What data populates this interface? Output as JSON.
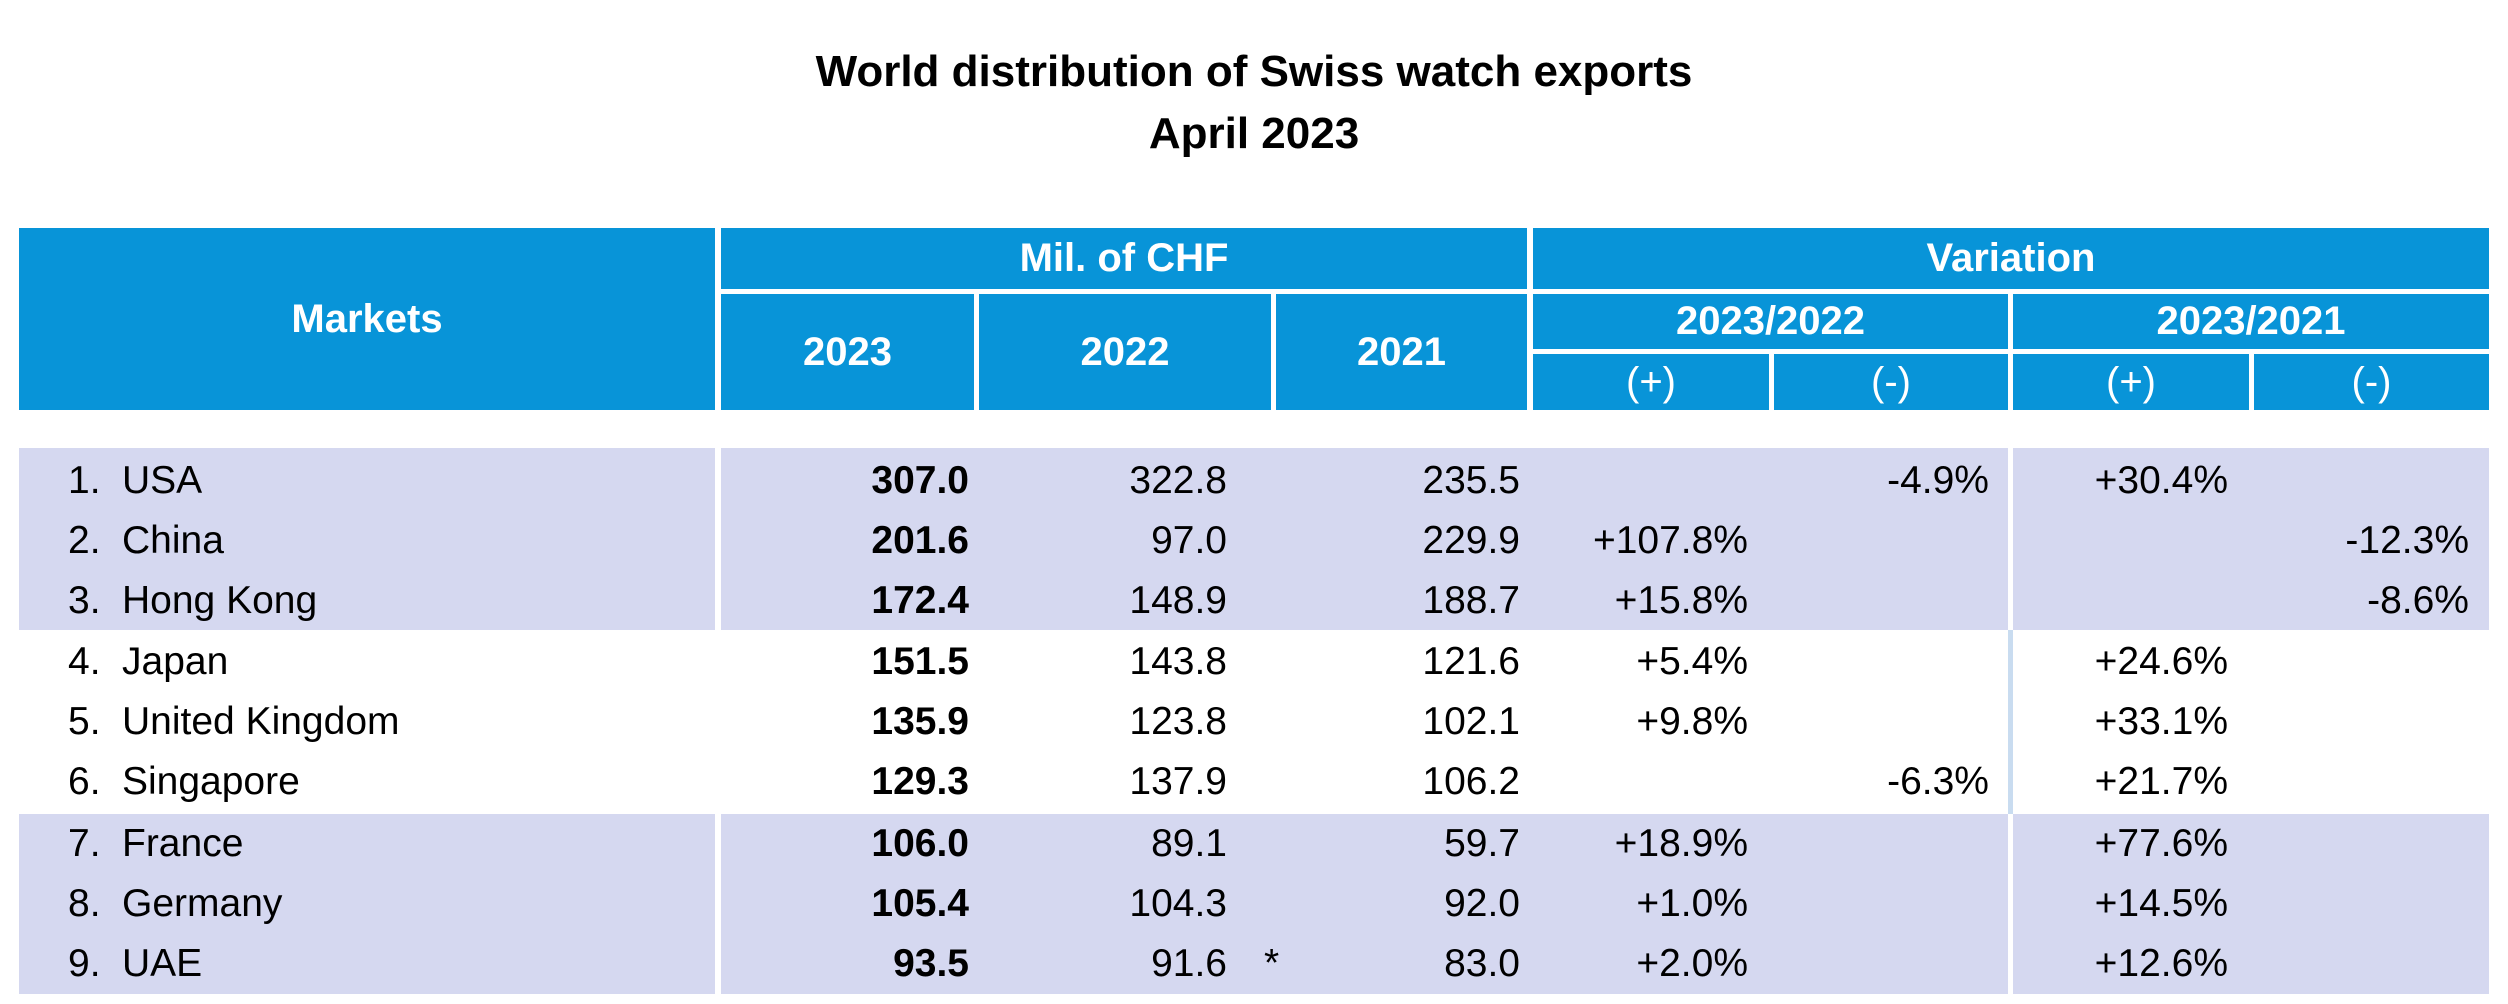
{
  "title": {
    "line1": "World distribution of Swiss watch exports",
    "line2": "April 2023"
  },
  "header": {
    "markets": "Markets",
    "mil_chf": "Mil. of CHF",
    "variation": "Variation",
    "y2023": "2023",
    "y2022": "2022",
    "y2021": "2021",
    "var1": "2023/2022",
    "var2": "2023/2021",
    "plus": "(+)",
    "minus": "(-)"
  },
  "rows": [
    {
      "rank": "1.",
      "market": "USA",
      "v2023": "307.0",
      "v2022": "322.8",
      "v2021": "235.5",
      "var22_plus": "",
      "var22_minus": "-4.9%",
      "var21_plus": "+30.4%",
      "var21_minus": ""
    },
    {
      "rank": "2.",
      "market": "China",
      "v2023": "201.6",
      "v2022": "97.0",
      "v2021": "229.9",
      "var22_plus": "+107.8%",
      "var22_minus": "",
      "var21_plus": "",
      "var21_minus": "-12.3%"
    },
    {
      "rank": "3.",
      "market": "Hong Kong",
      "v2023": "172.4",
      "v2022": "148.9",
      "v2021": "188.7",
      "var22_plus": "+15.8%",
      "var22_minus": "",
      "var21_plus": "",
      "var21_minus": "-8.6%"
    },
    {
      "rank": "4.",
      "market": "Japan",
      "v2023": "151.5",
      "v2022": "143.8",
      "v2021": "121.6",
      "var22_plus": "+5.4%",
      "var22_minus": "",
      "var21_plus": "+24.6%",
      "var21_minus": ""
    },
    {
      "rank": "5.",
      "market": "United Kingdom",
      "v2023": "135.9",
      "v2022": "123.8",
      "v2021": "102.1",
      "var22_plus": "+9.8%",
      "var22_minus": "",
      "var21_plus": "+33.1%",
      "var21_minus": ""
    },
    {
      "rank": "6.",
      "market": "Singapore",
      "v2023": "129.3",
      "v2022": "137.9",
      "v2021": "106.2",
      "var22_plus": "",
      "var22_minus": "-6.3%",
      "var21_plus": "+21.7%",
      "var21_minus": ""
    },
    {
      "rank": "7.",
      "market": "France",
      "v2023": "106.0",
      "v2022": "89.1",
      "v2021": "59.7",
      "var22_plus": "+18.9%",
      "var22_minus": "",
      "var21_plus": "+77.6%",
      "var21_minus": ""
    },
    {
      "rank": "8.",
      "market": "Germany",
      "v2023": "105.4",
      "v2022": "104.3",
      "v2021": "92.0",
      "var22_plus": "+1.0%",
      "var22_minus": "",
      "var21_plus": "+14.5%",
      "var21_minus": ""
    },
    {
      "rank": "9.",
      "market": "UAE",
      "v2023": "93.5",
      "v2022": "91.6",
      "v2021": "83.0",
      "var22_plus": "+2.0%",
      "var22_minus": "",
      "var21_plus": "+12.6%",
      "var21_minus": "",
      "note_2022": "*"
    }
  ],
  "colors": {
    "header_bg": "#0894d8",
    "band_bg": "#d5d8f0",
    "header_text": "#ffffff"
  }
}
